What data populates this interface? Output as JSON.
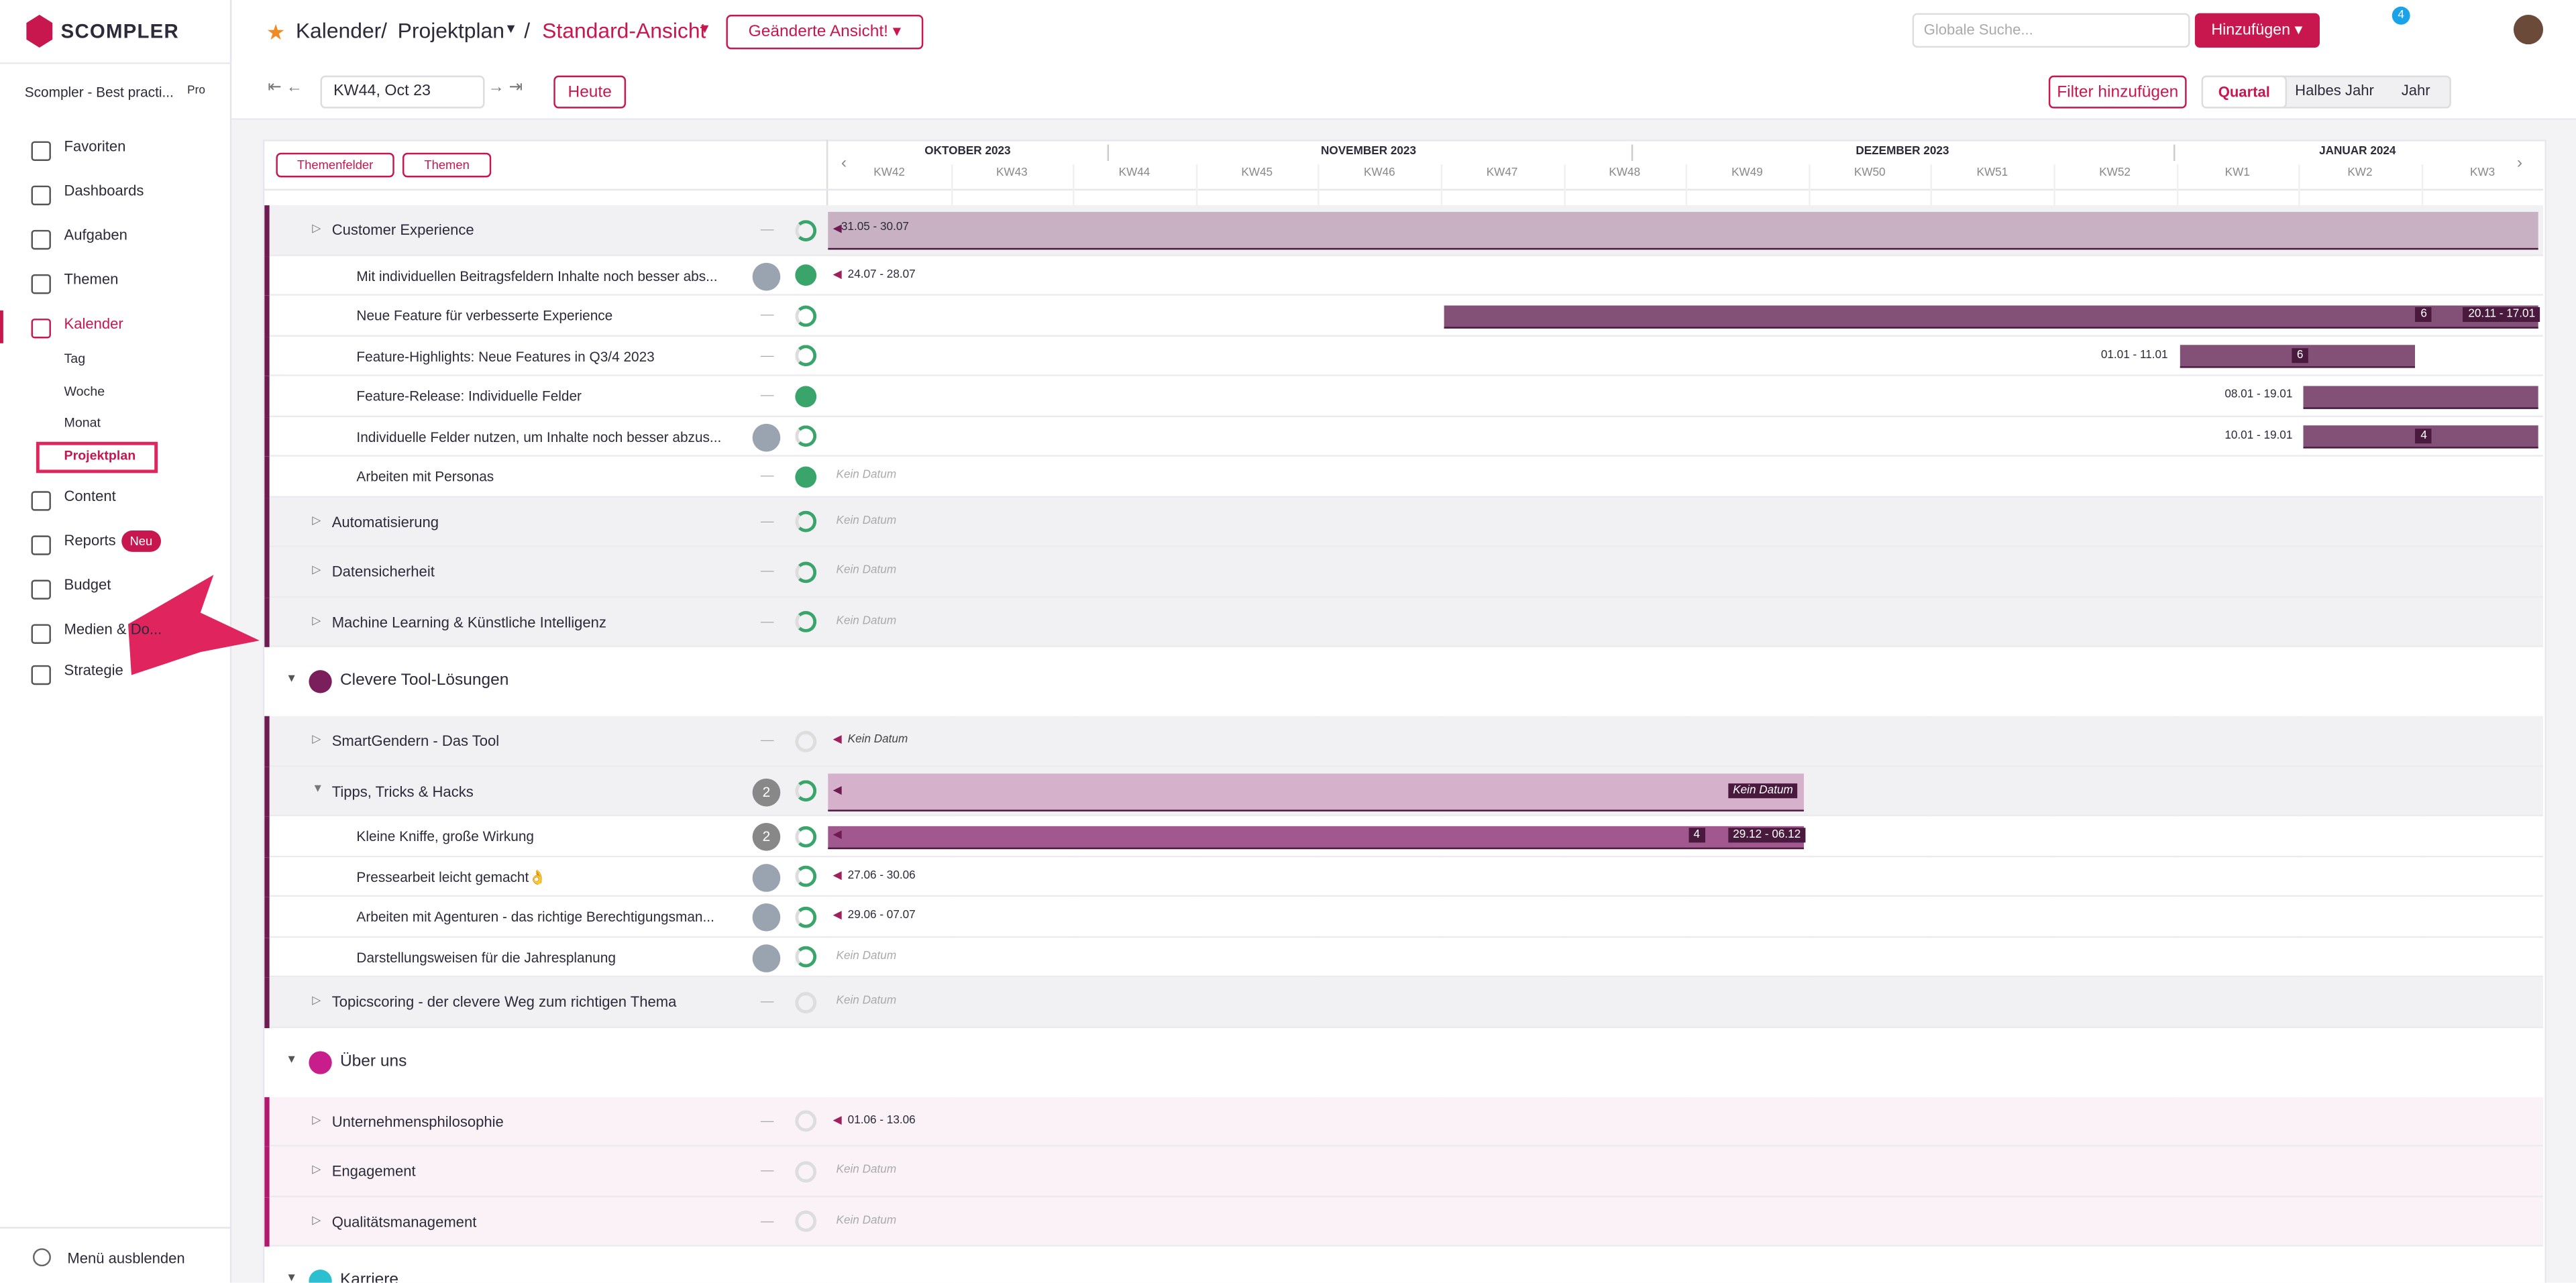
{
  "header": {
    "brand": "SCOMPLER",
    "breadcrumb": [
      "Kalender",
      "Projektplan",
      "Standard-Ansicht"
    ],
    "separator": "/",
    "changed": "Geänderte Ansicht!",
    "search": "Globale Suche...",
    "add": "Hinzufügen",
    "notifications": "4"
  },
  "sidebar": {
    "workspace": "Scompler - Best practi...",
    "plan": "Pro",
    "nav": [
      {
        "label": "Favoriten"
      },
      {
        "label": "Dashboards"
      },
      {
        "label": "Aufgaben"
      },
      {
        "label": "Themen"
      },
      {
        "label": "Kalender",
        "sub": [
          "Tag",
          "Woche",
          "Monat",
          "Projektplan"
        ]
      },
      {
        "label": "Content"
      },
      {
        "label": "Reports",
        "badge": "Neu"
      },
      {
        "label": "Budget"
      },
      {
        "label": "Medien & Do..."
      },
      {
        "label": "Strategie"
      }
    ],
    "footer": "Menü ausblenden"
  },
  "toolbar": {
    "week": "KW44, Oct 23",
    "today": "Heute",
    "filter": "Filter hinzufügen",
    "views": [
      "Quartal",
      "Halbes Jahr",
      "Jahr"
    ]
  },
  "gantt": {
    "buttons": [
      "Themenfelder",
      "Themen"
    ],
    "months": [
      "OKTOBER 2023",
      "NOVEMBER 2023",
      "DEZEMBER 2023",
      "JANUAR 2024"
    ],
    "weeks": [
      "KW42",
      "KW43",
      "KW44",
      "KW45",
      "KW46",
      "KW47",
      "KW48",
      "KW49",
      "KW50",
      "KW51",
      "KW52",
      "KW1",
      "KW2",
      "KW3"
    ],
    "empty": "—",
    "rows": [
      {
        "kind": "topic",
        "label": "Customer Experience",
        "date": "31.05 - 30.07"
      },
      {
        "kind": "item",
        "label": "Mit individuellen Beitragsfeldern Inhalte noch besser abs...",
        "date": "24.07 - 28.07"
      },
      {
        "kind": "item",
        "label": "Neue Feature für verbesserte Experience",
        "date": "20.11 - 17.01",
        "count": "6"
      },
      {
        "kind": "item",
        "label": "Feature-Highlights: Neue Features in Q3/4 2023",
        "date": "01.01 - 11.01",
        "count": "6"
      },
      {
        "kind": "item",
        "label": "Feature-Release: Individuelle Felder",
        "date": "08.01 - 19.01"
      },
      {
        "kind": "item",
        "label": "Individuelle Felder nutzen, um Inhalte noch besser abzus...",
        "date": "10.01 - 19.01",
        "count": "4"
      },
      {
        "kind": "item",
        "label": "Arbeiten mit Personas",
        "date": "Kein Datum"
      },
      {
        "kind": "topic",
        "label": "Automatisierung",
        "date": "Kein Datum"
      },
      {
        "kind": "topic",
        "label": "Datensicherheit",
        "date": "Kein Datum"
      },
      {
        "kind": "topic",
        "label": "Machine Learning & Künstliche Intelligenz",
        "date": "Kein Datum"
      },
      {
        "kind": "group",
        "label": "Clevere Tool-Lösungen"
      },
      {
        "kind": "topic",
        "label": "SmartGendern - Das Tool",
        "date": "Kein Datum"
      },
      {
        "kind": "topic",
        "label": "Tipps, Tricks & Hacks",
        "date": "Kein Datum",
        "tasks": "2"
      },
      {
        "kind": "item",
        "label": "Kleine Kniffe, große Wirkung",
        "date": "29.12 - 06.12",
        "count": "4",
        "tasks": "2"
      },
      {
        "kind": "item",
        "label": "Pressearbeit leicht gemacht👌",
        "date": "27.06 - 30.06"
      },
      {
        "kind": "item",
        "label": "Arbeiten mit Agenturen - das richtige Berechtigungsman...",
        "date": "29.06 - 07.07"
      },
      {
        "kind": "item",
        "label": "Darstellungsweisen für die Jahresplanung",
        "date": "Kein Datum"
      },
      {
        "kind": "topic",
        "label": "Topicscoring - der clevere Weg zum richtigen Thema",
        "date": "Kein Datum"
      },
      {
        "kind": "group",
        "label": "Über uns"
      },
      {
        "kind": "topic",
        "label": "Unternehmensphilosophie",
        "date": "01.06 - 13.06"
      },
      {
        "kind": "topic",
        "label": "Engagement",
        "date": "Kein Datum"
      },
      {
        "kind": "topic",
        "label": "Qualitätsmanagement",
        "date": "Kein Datum"
      },
      {
        "kind": "group",
        "label": "Karriere"
      }
    ]
  }
}
